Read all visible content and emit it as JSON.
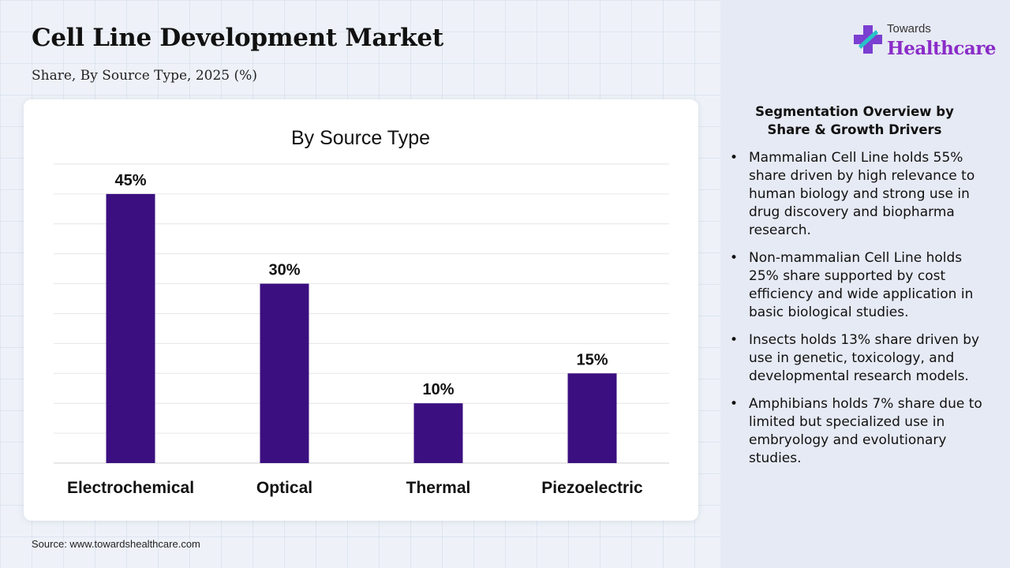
{
  "header": {
    "title": "Cell Line Development Market",
    "subtitle": "Share, By Source Type, 2025 (%)"
  },
  "source": "Source: www.towardshealthcare.com",
  "logo": {
    "top_text": "Towards",
    "main_text": "Healthcare"
  },
  "panel": {
    "heading_line1": "Segmentation Overview by",
    "heading_line2": "Share & Growth Drivers",
    "bullet_symbol": "•",
    "bullets": [
      "Mammalian Cell Line holds 55% share driven by high relevance to human biology and strong use in drug discovery and biopharma research.",
      "Non-mammalian Cell Line holds 25% share supported by cost efficiency and wide application in basic biological studies.",
      "Insects holds 13% share driven by use in genetic, toxicology, and developmental research models.",
      "Amphibians holds 7% share due to limited but specialized use in embryology and evolutionary studies."
    ]
  },
  "colors": {
    "bar": "#3b0f80",
    "logo_cross": "#7b3fd1",
    "logo_accent": "#28c3c8"
  },
  "chart_data": {
    "type": "bar",
    "title": "By Source Type",
    "categories": [
      "Electrochemical",
      "Optical",
      "Thermal",
      "Piezoelectric"
    ],
    "values": [
      45,
      30,
      10,
      15
    ],
    "data_labels": [
      "45%",
      "30%",
      "10%",
      "15%"
    ],
    "xlabel": "",
    "ylabel": "",
    "ylim": [
      0,
      50
    ],
    "grid": true,
    "legend": "none"
  }
}
